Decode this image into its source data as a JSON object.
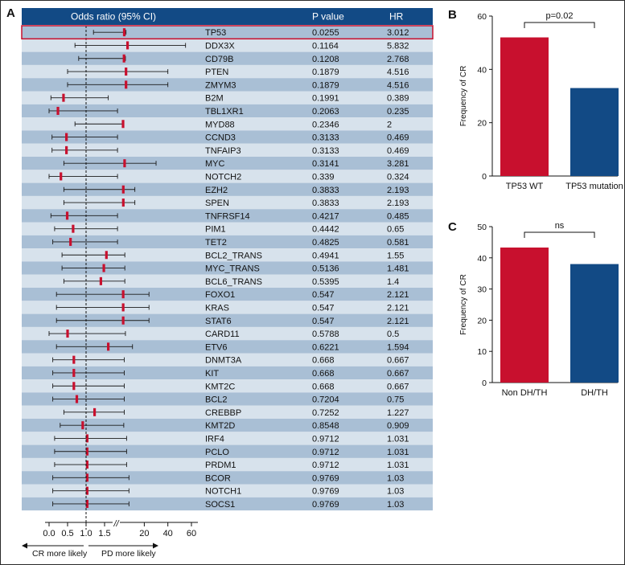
{
  "panel_labels": {
    "a": "A",
    "b": "B",
    "c": "C"
  },
  "forest": {
    "headers": {
      "or": "Odds ratio (95% CI)",
      "p": "P value",
      "hr": "HR"
    },
    "axis_ticks": [
      "0.0",
      "0.5",
      "1.0",
      "1.5",
      "20",
      "40",
      "60"
    ],
    "break_mark": "//",
    "left_direction": "CR more likely",
    "right_direction": "PD more likely",
    "colors": {
      "header": "#124a85",
      "row_dark": "#a9bfd5",
      "row_light": "#d7e2ec",
      "point": "#c8102e",
      "highlight_border": "#c8102e"
    }
  },
  "chart_data": [
    {
      "type": "forest",
      "title": "Odds ratio (95% CI)",
      "xlabel_left": "CR more likely",
      "xlabel_right": "PD more likely",
      "reference_line": 1.0,
      "highlighted": "TP53",
      "rows": [
        {
          "gene": "TP53",
          "p": "0.0255",
          "hr": "3.012",
          "or": 3.0,
          "lo": 1.2,
          "hi": 4.5
        },
        {
          "gene": "DDX3X",
          "p": "0.1164",
          "hr": "5.832",
          "or": 5.8,
          "lo": 0.7,
          "hi": 55
        },
        {
          "gene": "CD79B",
          "p": "0.1208",
          "hr": "2.768",
          "or": 2.8,
          "lo": 0.8,
          "hi": 4
        },
        {
          "gene": "PTEN",
          "p": "0.1879",
          "hr": "4.516",
          "or": 4.5,
          "lo": 0.5,
          "hi": 40
        },
        {
          "gene": "ZMYM3",
          "p": "0.1879",
          "hr": "4.516",
          "or": 4.5,
          "lo": 0.5,
          "hi": 40
        },
        {
          "gene": "B2M",
          "p": "0.1991",
          "hr": "0.389",
          "or": 0.39,
          "lo": 0.05,
          "hi": 1.6
        },
        {
          "gene": "TBL1XR1",
          "p": "0.2063",
          "hr": "0.235",
          "or": 0.24,
          "lo": 0.0,
          "hi": 1.85
        },
        {
          "gene": "MYD88",
          "p": "0.2346",
          "hr": "2",
          "or": 2.0,
          "lo": 0.7,
          "hi": 2.6
        },
        {
          "gene": "CCND3",
          "p": "0.3133",
          "hr": "0.469",
          "or": 0.47,
          "lo": 0.08,
          "hi": 1.85
        },
        {
          "gene": "TNFAIP3",
          "p": "0.3133",
          "hr": "0.469",
          "or": 0.47,
          "lo": 0.08,
          "hi": 1.85
        },
        {
          "gene": "MYC",
          "p": "0.3141",
          "hr": "3.281",
          "or": 3.3,
          "lo": 0.4,
          "hi": 30
        },
        {
          "gene": "NOTCH2",
          "p": "0.339",
          "hr": "0.324",
          "or": 0.32,
          "lo": 0.0,
          "hi": 1.85
        },
        {
          "gene": "EZH2",
          "p": "0.3833",
          "hr": "2.193",
          "or": 2.2,
          "lo": 0.4,
          "hi": 12
        },
        {
          "gene": "SPEN",
          "p": "0.3833",
          "hr": "2.193",
          "or": 2.2,
          "lo": 0.4,
          "hi": 12
        },
        {
          "gene": "TNFRSF14",
          "p": "0.4217",
          "hr": "0.485",
          "or": 0.49,
          "lo": 0.05,
          "hi": 1.85
        },
        {
          "gene": "PIM1",
          "p": "0.4442",
          "hr": "0.65",
          "or": 0.65,
          "lo": 0.15,
          "hi": 1.85
        },
        {
          "gene": "TET2",
          "p": "0.4825",
          "hr": "0.581",
          "or": 0.58,
          "lo": 0.1,
          "hi": 1.85
        },
        {
          "gene": "BCL2_TRANS",
          "p": "0.4941",
          "hr": "1.55",
          "or": 1.55,
          "lo": 0.35,
          "hi": 3.5
        },
        {
          "gene": "MYC_TRANS",
          "p": "0.5136",
          "hr": "1.481",
          "or": 1.48,
          "lo": 0.35,
          "hi": 3.5
        },
        {
          "gene": "BCL6_TRANS",
          "p": "0.5395",
          "hr": "1.4",
          "or": 1.4,
          "lo": 0.4,
          "hi": 3.5
        },
        {
          "gene": "FOXO1",
          "p": "0.547",
          "hr": "2.121",
          "or": 2.1,
          "lo": 0.2,
          "hi": 24
        },
        {
          "gene": "KRAS",
          "p": "0.547",
          "hr": "2.121",
          "or": 2.1,
          "lo": 0.2,
          "hi": 24
        },
        {
          "gene": "STAT6",
          "p": "0.547",
          "hr": "2.121",
          "or": 2.1,
          "lo": 0.2,
          "hi": 24
        },
        {
          "gene": "CARD11",
          "p": "0.5788",
          "hr": "0.5",
          "or": 0.5,
          "lo": 0.0,
          "hi": 4
        },
        {
          "gene": "ETV6",
          "p": "0.6221",
          "hr": "1.594",
          "or": 1.6,
          "lo": 0.2,
          "hi": 10
        },
        {
          "gene": "DNMT3A",
          "p": "0.668",
          "hr": "0.667",
          "or": 0.67,
          "lo": 0.1,
          "hi": 3
        },
        {
          "gene": "KIT",
          "p": "0.668",
          "hr": "0.667",
          "or": 0.67,
          "lo": 0.1,
          "hi": 3
        },
        {
          "gene": "KMT2C",
          "p": "0.668",
          "hr": "0.667",
          "or": 0.67,
          "lo": 0.1,
          "hi": 3
        },
        {
          "gene": "BCL2",
          "p": "0.7204",
          "hr": "0.75",
          "or": 0.75,
          "lo": 0.1,
          "hi": 3
        },
        {
          "gene": "CREBBP",
          "p": "0.7252",
          "hr": "1.227",
          "or": 1.23,
          "lo": 0.4,
          "hi": 3
        },
        {
          "gene": "KMT2D",
          "p": "0.8548",
          "hr": "0.909",
          "or": 0.91,
          "lo": 0.3,
          "hi": 2.6
        },
        {
          "gene": "IRF4",
          "p": "0.9712",
          "hr": "1.031",
          "or": 1.03,
          "lo": 0.15,
          "hi": 5
        },
        {
          "gene": "PCLO",
          "p": "0.9712",
          "hr": "1.031",
          "or": 1.03,
          "lo": 0.15,
          "hi": 5
        },
        {
          "gene": "PRDM1",
          "p": "0.9712",
          "hr": "1.031",
          "or": 1.03,
          "lo": 0.15,
          "hi": 5
        },
        {
          "gene": "BCOR",
          "p": "0.9769",
          "hr": "1.03",
          "or": 1.03,
          "lo": 0.1,
          "hi": 7
        },
        {
          "gene": "NOTCH1",
          "p": "0.9769",
          "hr": "1.03",
          "or": 1.03,
          "lo": 0.1,
          "hi": 7
        },
        {
          "gene": "SOCS1",
          "p": "0.9769",
          "hr": "1.03",
          "or": 1.03,
          "lo": 0.1,
          "hi": 7
        }
      ]
    },
    {
      "type": "bar",
      "panel": "B",
      "categories": [
        "TP53 WT",
        "TP53 mutation"
      ],
      "values": [
        52,
        33
      ],
      "colors": [
        "#c8102e",
        "#124a85"
      ],
      "ylabel": "Frequency of CR",
      "ylim": [
        0,
        60
      ],
      "yticks": [
        "0",
        "20",
        "40",
        "60"
      ],
      "annotation": "p=0.02"
    },
    {
      "type": "bar",
      "panel": "C",
      "categories": [
        "Non DH/TH",
        "DH/TH"
      ],
      "values": [
        43.3,
        38
      ],
      "colors": [
        "#c8102e",
        "#124a85"
      ],
      "ylabel": "Frequency of CR",
      "ylim": [
        0,
        50
      ],
      "yticks": [
        "0",
        "10",
        "20",
        "30",
        "40",
        "50"
      ],
      "annotation": "ns"
    }
  ]
}
